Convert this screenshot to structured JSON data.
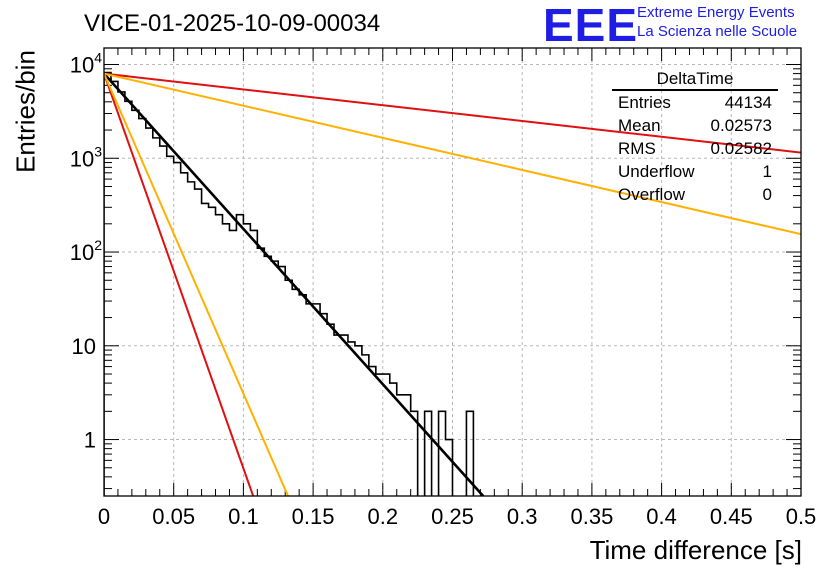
{
  "title": "VICE-01-2025-10-09-00034",
  "logo": {
    "text": "EEE",
    "line1": "Extreme Energy Events",
    "line2": "La Scienza nelle Scuole"
  },
  "stats": {
    "name": "DeltaTime",
    "rows": [
      {
        "label": "Entries",
        "value": "44134"
      },
      {
        "label": "Mean",
        "value": "0.02573"
      },
      {
        "label": "RMS",
        "value": "0.02582"
      },
      {
        "label": "Underflow",
        "value": "1"
      },
      {
        "label": "Overflow",
        "value": "0"
      }
    ]
  },
  "chart_data": {
    "type": "histogram",
    "title": "VICE-01-2025-10-09-00034",
    "xlabel": "Time difference [s]",
    "ylabel": "Entries/bin",
    "xlim": [
      0,
      0.5
    ],
    "ylog": true,
    "ylim": [
      0.25,
      15000
    ],
    "grid": true,
    "x_ticks": [
      "0",
      "0.05",
      "0.1",
      "0.15",
      "0.2",
      "0.25",
      "0.3",
      "0.35",
      "0.4",
      "0.45",
      "0.5"
    ],
    "y_ticks": [
      {
        "value": 1,
        "label": "1"
      },
      {
        "value": 10,
        "label": "10"
      },
      {
        "value": 100,
        "label": "10^2"
      },
      {
        "value": 1000,
        "label": "10^3"
      },
      {
        "value": 10000,
        "label": "10^4"
      }
    ],
    "bin_width": 0.005,
    "bins": [
      {
        "x": 0.0,
        "y": 8200
      },
      {
        "x": 0.005,
        "y": 6600
      },
      {
        "x": 0.01,
        "y": 5100
      },
      {
        "x": 0.015,
        "y": 4050
      },
      {
        "x": 0.02,
        "y": 3250
      },
      {
        "x": 0.025,
        "y": 2650
      },
      {
        "x": 0.03,
        "y": 2100
      },
      {
        "x": 0.035,
        "y": 1650
      },
      {
        "x": 0.04,
        "y": 1350
      },
      {
        "x": 0.045,
        "y": 1050
      },
      {
        "x": 0.05,
        "y": 900
      },
      {
        "x": 0.055,
        "y": 700
      },
      {
        "x": 0.06,
        "y": 560
      },
      {
        "x": 0.065,
        "y": 470
      },
      {
        "x": 0.07,
        "y": 330
      },
      {
        "x": 0.075,
        "y": 300
      },
      {
        "x": 0.08,
        "y": 250
      },
      {
        "x": 0.085,
        "y": 200
      },
      {
        "x": 0.09,
        "y": 170
      },
      {
        "x": 0.095,
        "y": 250
      },
      {
        "x": 0.1,
        "y": 200
      },
      {
        "x": 0.105,
        "y": 170
      },
      {
        "x": 0.11,
        "y": 110
      },
      {
        "x": 0.115,
        "y": 90
      },
      {
        "x": 0.12,
        "y": 80
      },
      {
        "x": 0.125,
        "y": 70
      },
      {
        "x": 0.13,
        "y": 50
      },
      {
        "x": 0.135,
        "y": 40
      },
      {
        "x": 0.14,
        "y": 35
      },
      {
        "x": 0.145,
        "y": 28
      },
      {
        "x": 0.15,
        "y": 28
      },
      {
        "x": 0.155,
        "y": 22
      },
      {
        "x": 0.16,
        "y": 17
      },
      {
        "x": 0.165,
        "y": 13
      },
      {
        "x": 0.17,
        "y": 13
      },
      {
        "x": 0.175,
        "y": 11
      },
      {
        "x": 0.18,
        "y": 10
      },
      {
        "x": 0.185,
        "y": 8
      },
      {
        "x": 0.19,
        "y": 6
      },
      {
        "x": 0.195,
        "y": 5
      },
      {
        "x": 0.2,
        "y": 5
      },
      {
        "x": 0.205,
        "y": 4
      },
      {
        "x": 0.21,
        "y": 3
      },
      {
        "x": 0.215,
        "y": 3
      },
      {
        "x": 0.22,
        "y": 2
      },
      {
        "x": 0.225,
        "y": 0
      },
      {
        "x": 0.23,
        "y": 2
      },
      {
        "x": 0.235,
        "y": 0
      },
      {
        "x": 0.24,
        "y": 2
      },
      {
        "x": 0.245,
        "y": 1
      },
      {
        "x": 0.25,
        "y": 0
      },
      {
        "x": 0.255,
        "y": 0
      },
      {
        "x": 0.26,
        "y": 2
      },
      {
        "x": 0.265,
        "y": 0
      }
    ],
    "fits": [
      {
        "name": "fit",
        "color": "#000000",
        "points": [
          [
            0,
            8000
          ],
          [
            0.272,
            0.25
          ]
        ]
      },
      {
        "name": "red-steep",
        "color": "#e01010",
        "points": [
          [
            0,
            8000
          ],
          [
            0.107,
            0.25
          ]
        ]
      },
      {
        "name": "orange-steep",
        "color": "#ffb000",
        "points": [
          [
            0,
            8000
          ],
          [
            0.132,
            0.25
          ]
        ]
      },
      {
        "name": "red-shallow",
        "color": "#e01010",
        "points": [
          [
            0,
            8000
          ],
          [
            0.5,
            1150
          ]
        ]
      },
      {
        "name": "orange-shallow",
        "color": "#ffb000",
        "points": [
          [
            0,
            8000
          ],
          [
            0.5,
            155
          ]
        ]
      }
    ]
  }
}
